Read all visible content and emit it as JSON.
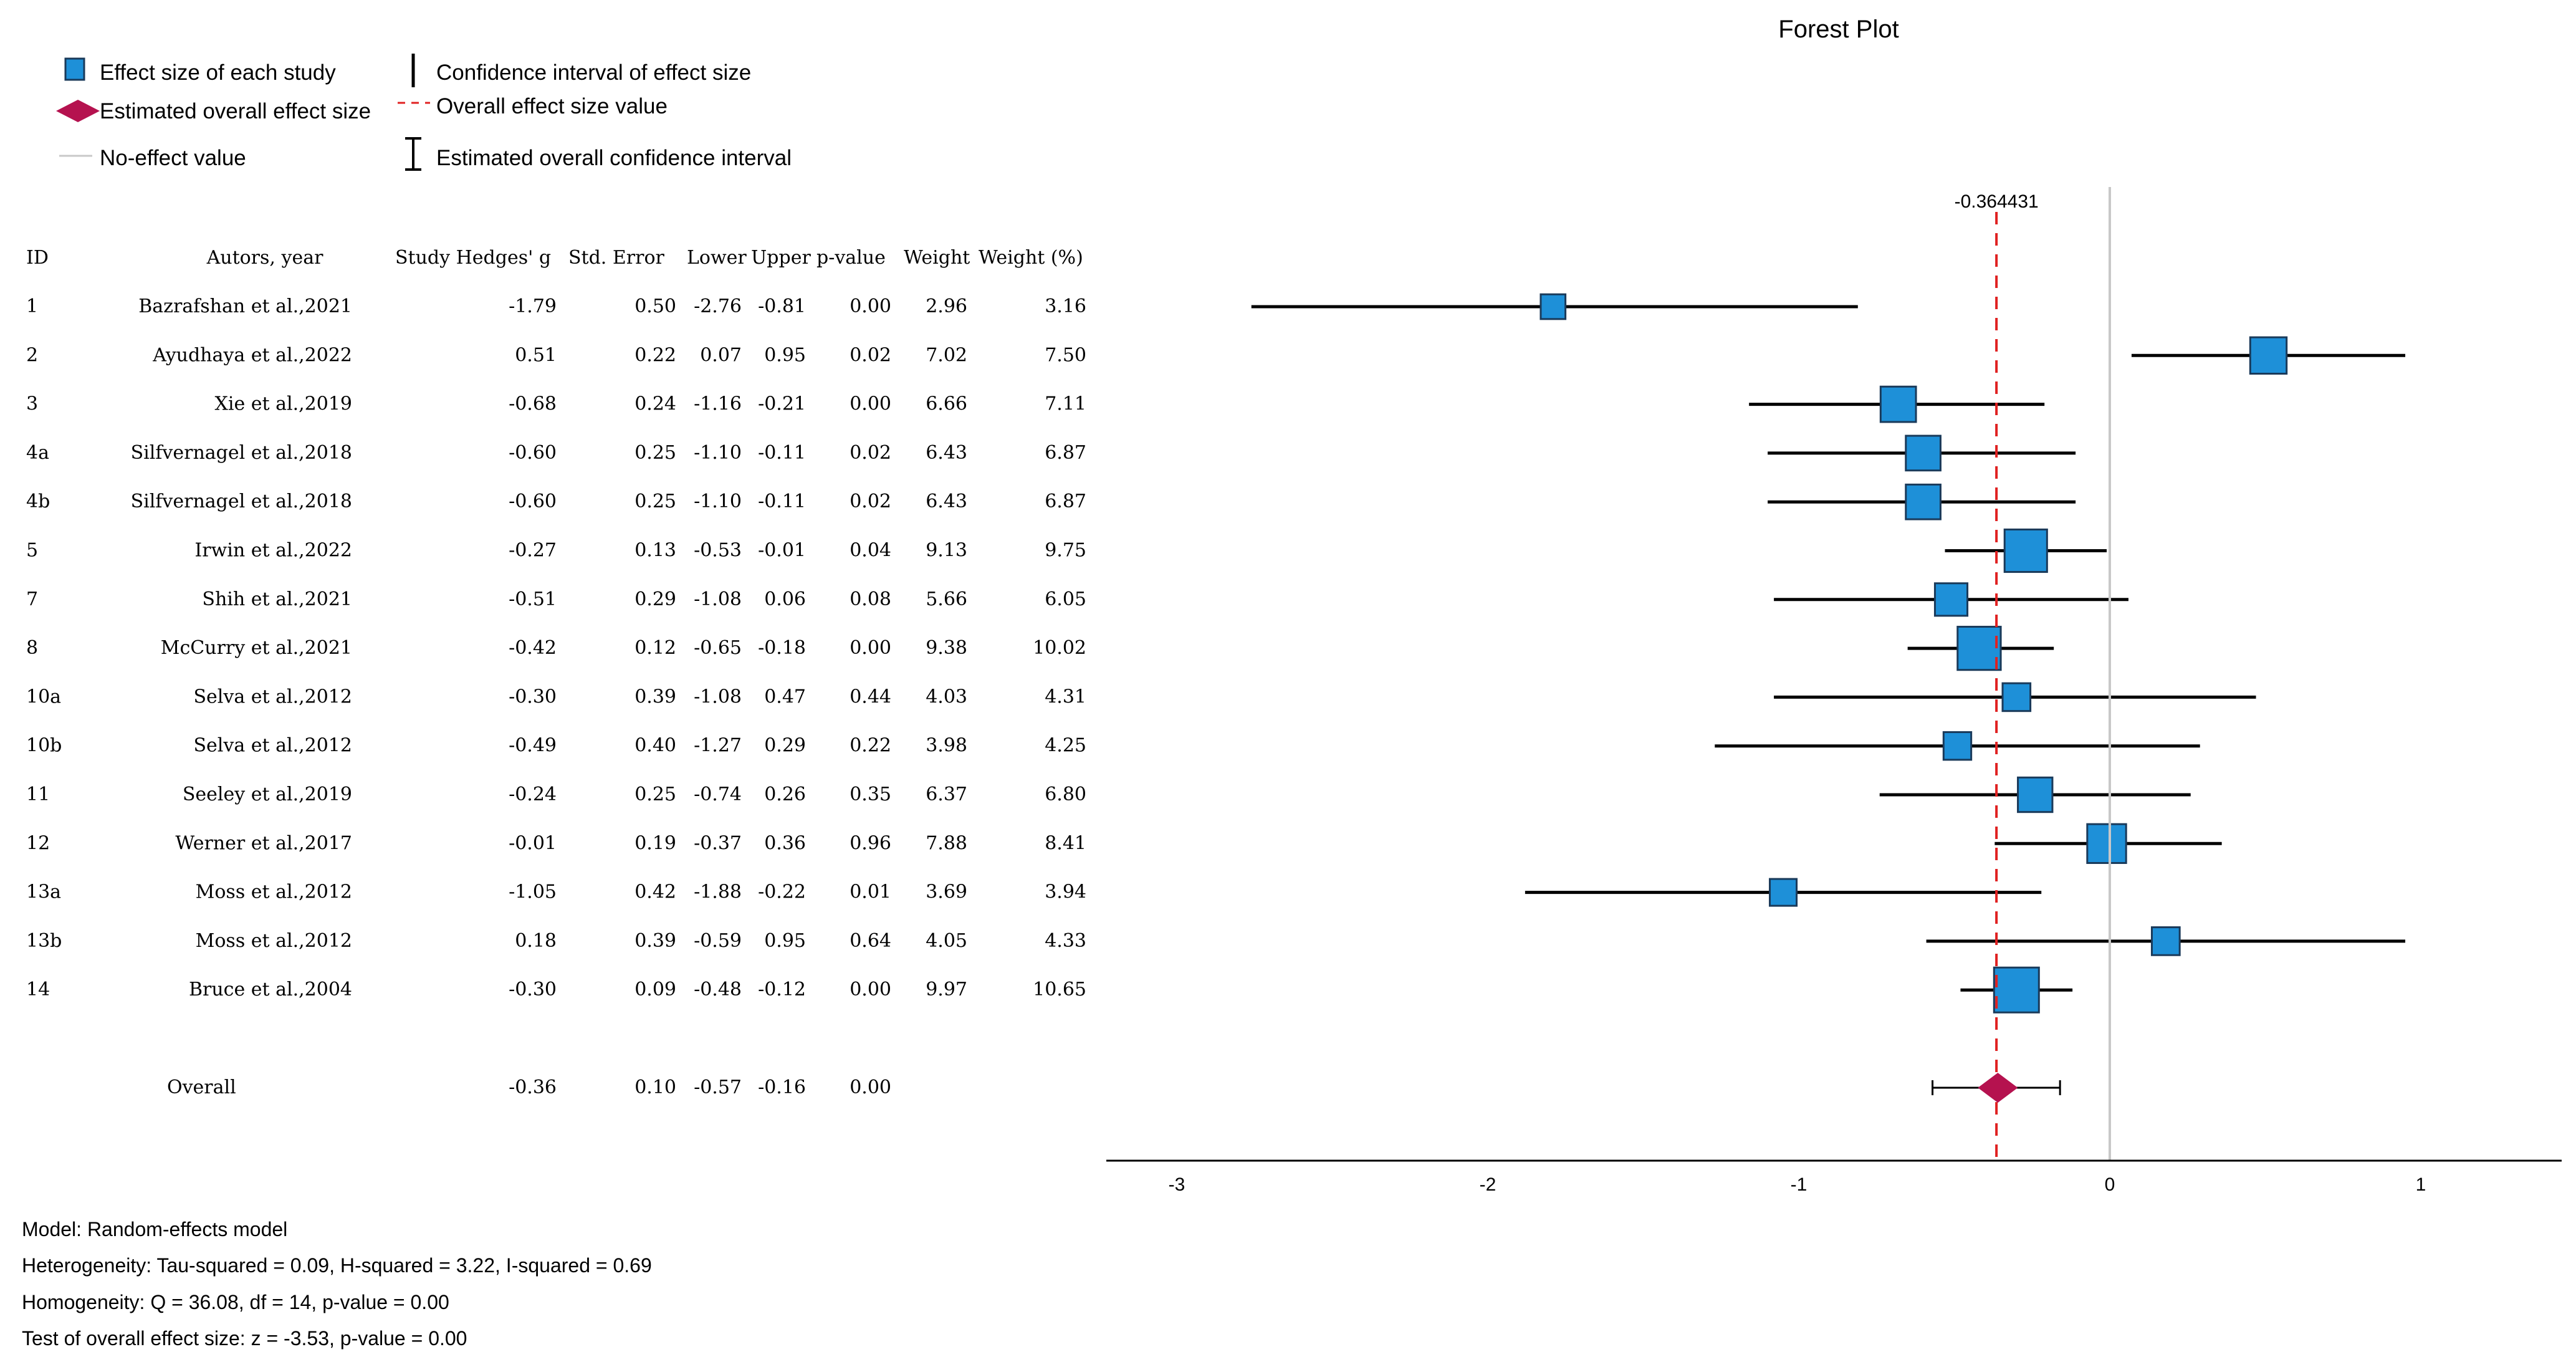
{
  "chart_data": {
    "type": "forest",
    "title": "Forest Plot",
    "legend": {
      "effect_size": "Effect size of each study",
      "confidence_interval": "Confidence interval of effect size",
      "overall_effect": "Estimated overall effect size",
      "overall_value": "Overall effect size value",
      "no_effect": "No-effect value",
      "overall_ci": "Estimated overall confidence interval"
    },
    "overall_value_label": "-0.364431",
    "overall_value": -0.364431,
    "no_effect_value": 0,
    "x_range": [
      -3.3,
      1.5
    ],
    "x_ticks": [
      -3,
      -2,
      -1,
      0,
      1
    ],
    "x_tick_labels": [
      "-3",
      "-2",
      "-1",
      "0",
      "1"
    ],
    "columns": [
      "ID",
      "Autors, year",
      "Study Hedges' g",
      "Std. Error",
      "Lower",
      "Upper",
      "p-value",
      "Weight",
      "Weight (%)"
    ],
    "studies": [
      {
        "id": "1",
        "author": "Bazrafshan et al.,2021",
        "g": "-1.79",
        "se": "0.50",
        "lower": "-2.76",
        "upper": "-0.81",
        "p": "0.00",
        "weight": "2.96",
        "weight_pct": "3.16"
      },
      {
        "id": "2",
        "author": "Ayudhaya et al.,2022",
        "g": "0.51",
        "se": "0.22",
        "lower": "0.07",
        "upper": "0.95",
        "p": "0.02",
        "weight": "7.02",
        "weight_pct": "7.50"
      },
      {
        "id": "3",
        "author": "Xie et al.,2019",
        "g": "-0.68",
        "se": "0.24",
        "lower": "-1.16",
        "upper": "-0.21",
        "p": "0.00",
        "weight": "6.66",
        "weight_pct": "7.11"
      },
      {
        "id": "4a",
        "author": "Silfvernagel et al.,2018",
        "g": "-0.60",
        "se": "0.25",
        "lower": "-1.10",
        "upper": "-0.11",
        "p": "0.02",
        "weight": "6.43",
        "weight_pct": "6.87"
      },
      {
        "id": "4b",
        "author": "Silfvernagel et al.,2018",
        "g": "-0.60",
        "se": "0.25",
        "lower": "-1.10",
        "upper": "-0.11",
        "p": "0.02",
        "weight": "6.43",
        "weight_pct": "6.87"
      },
      {
        "id": "5",
        "author": "Irwin et al.,2022",
        "g": "-0.27",
        "se": "0.13",
        "lower": "-0.53",
        "upper": "-0.01",
        "p": "0.04",
        "weight": "9.13",
        "weight_pct": "9.75"
      },
      {
        "id": "7",
        "author": "Shih et al.,2021",
        "g": "-0.51",
        "se": "0.29",
        "lower": "-1.08",
        "upper": "0.06",
        "p": "0.08",
        "weight": "5.66",
        "weight_pct": "6.05"
      },
      {
        "id": "8",
        "author": "McCurry et al.,2021",
        "g": "-0.42",
        "se": "0.12",
        "lower": "-0.65",
        "upper": "-0.18",
        "p": "0.00",
        "weight": "9.38",
        "weight_pct": "10.02"
      },
      {
        "id": "10a",
        "author": "Selva et al.,2012",
        "g": "-0.30",
        "se": "0.39",
        "lower": "-1.08",
        "upper": "0.47",
        "p": "0.44",
        "weight": "4.03",
        "weight_pct": "4.31"
      },
      {
        "id": "10b",
        "author": "Selva et al.,2012",
        "g": "-0.49",
        "se": "0.40",
        "lower": "-1.27",
        "upper": "0.29",
        "p": "0.22",
        "weight": "3.98",
        "weight_pct": "4.25"
      },
      {
        "id": "11",
        "author": "Seeley et al.,2019",
        "g": "-0.24",
        "se": "0.25",
        "lower": "-0.74",
        "upper": "0.26",
        "p": "0.35",
        "weight": "6.37",
        "weight_pct": "6.80"
      },
      {
        "id": "12",
        "author": "Werner et al.,2017",
        "g": "-0.01",
        "se": "0.19",
        "lower": "-0.37",
        "upper": "0.36",
        "p": "0.96",
        "weight": "7.88",
        "weight_pct": "8.41"
      },
      {
        "id": "13a",
        "author": "Moss et al.,2012",
        "g": "-1.05",
        "se": "0.42",
        "lower": "-1.88",
        "upper": "-0.22",
        "p": "0.01",
        "weight": "3.69",
        "weight_pct": "3.94"
      },
      {
        "id": "13b",
        "author": "Moss et al.,2012",
        "g": "0.18",
        "se": "0.39",
        "lower": "-0.59",
        "upper": "0.95",
        "p": "0.64",
        "weight": "4.05",
        "weight_pct": "4.33"
      },
      {
        "id": "14",
        "author": "Bruce et al.,2004",
        "g": "-0.30",
        "se": "0.09",
        "lower": "-0.48",
        "upper": "-0.12",
        "p": "0.00",
        "weight": "9.97",
        "weight_pct": "10.65"
      }
    ],
    "overall": {
      "label": "Overall",
      "g": "-0.36",
      "se": "0.10",
      "lower": "-0.57",
      "upper": "-0.16",
      "p": "0.00"
    },
    "footnotes": [
      "Model: Random-effects model",
      "Heterogeneity: Tau-squared = 0.09, H-squared = 3.22, I-squared = 0.69",
      "Homogeneity: Q = 36.08, df = 14, p-value = 0.00",
      "Test of overall effect size: z = -3.53, p-value = 0.00"
    ],
    "colors": {
      "box": "#1e90d8",
      "box_stroke": "#1a3a5a",
      "diamond": "#b5124f",
      "overall_line": "#e02020",
      "no_effect_line": "#c8c8c8",
      "axis": "#000000"
    }
  }
}
